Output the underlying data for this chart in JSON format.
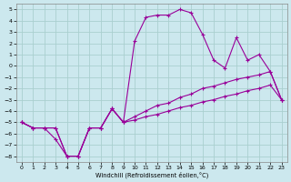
{
  "xlabel": "Windchill (Refroidissement éolien,°C)",
  "bg_color": "#cce8ee",
  "line_color": "#990099",
  "grid_color": "#aacfcf",
  "xlim": [
    -0.5,
    23.5
  ],
  "ylim": [
    -8.5,
    5.5
  ],
  "xticks": [
    0,
    1,
    2,
    3,
    4,
    5,
    6,
    7,
    8,
    9,
    10,
    11,
    12,
    13,
    14,
    15,
    16,
    17,
    18,
    19,
    20,
    21,
    22,
    23
  ],
  "yticks": [
    -8,
    -7,
    -6,
    -5,
    -4,
    -3,
    -2,
    -1,
    0,
    1,
    2,
    3,
    4,
    5
  ],
  "curve1_x": [
    0,
    1,
    2,
    3,
    4,
    5,
    6,
    7,
    8,
    9,
    10,
    11,
    12,
    13,
    14,
    15,
    16,
    17,
    18,
    19,
    20,
    21,
    22,
    23
  ],
  "curve1_y": [
    -5.0,
    -5.5,
    -5.5,
    -6.5,
    -8.0,
    -8.0,
    -5.5,
    -5.5,
    -3.8,
    -5.0,
    2.2,
    4.3,
    4.5,
    4.5,
    5.0,
    4.7,
    2.8,
    0.5,
    -0.2,
    2.5,
    0.5,
    1.0,
    -0.5,
    -3.0
  ],
  "curve2_x": [
    0,
    1,
    2,
    3,
    4,
    5,
    6,
    7,
    8,
    9,
    10,
    11,
    12,
    13,
    14,
    15,
    16,
    17,
    18,
    19,
    20,
    21,
    22,
    23
  ],
  "curve2_y": [
    -5.0,
    -5.5,
    -5.5,
    -5.5,
    -8.0,
    -8.0,
    -5.5,
    -5.5,
    -3.8,
    -5.0,
    -4.5,
    -4.0,
    -3.5,
    -3.3,
    -2.8,
    -2.5,
    -2.0,
    -1.8,
    -1.5,
    -1.2,
    -1.0,
    -0.8,
    -0.5,
    -3.0
  ],
  "curve3_x": [
    0,
    1,
    2,
    3,
    4,
    5,
    6,
    7,
    8,
    9,
    10,
    11,
    12,
    13,
    14,
    15,
    16,
    17,
    18,
    19,
    20,
    21,
    22,
    23
  ],
  "curve3_y": [
    -5.0,
    -5.5,
    -5.5,
    -5.5,
    -8.0,
    -8.0,
    -5.5,
    -5.5,
    -3.8,
    -5.0,
    -4.8,
    -4.5,
    -4.3,
    -4.0,
    -3.7,
    -3.5,
    -3.2,
    -3.0,
    -2.7,
    -2.5,
    -2.2,
    -2.0,
    -1.7,
    -3.0
  ]
}
